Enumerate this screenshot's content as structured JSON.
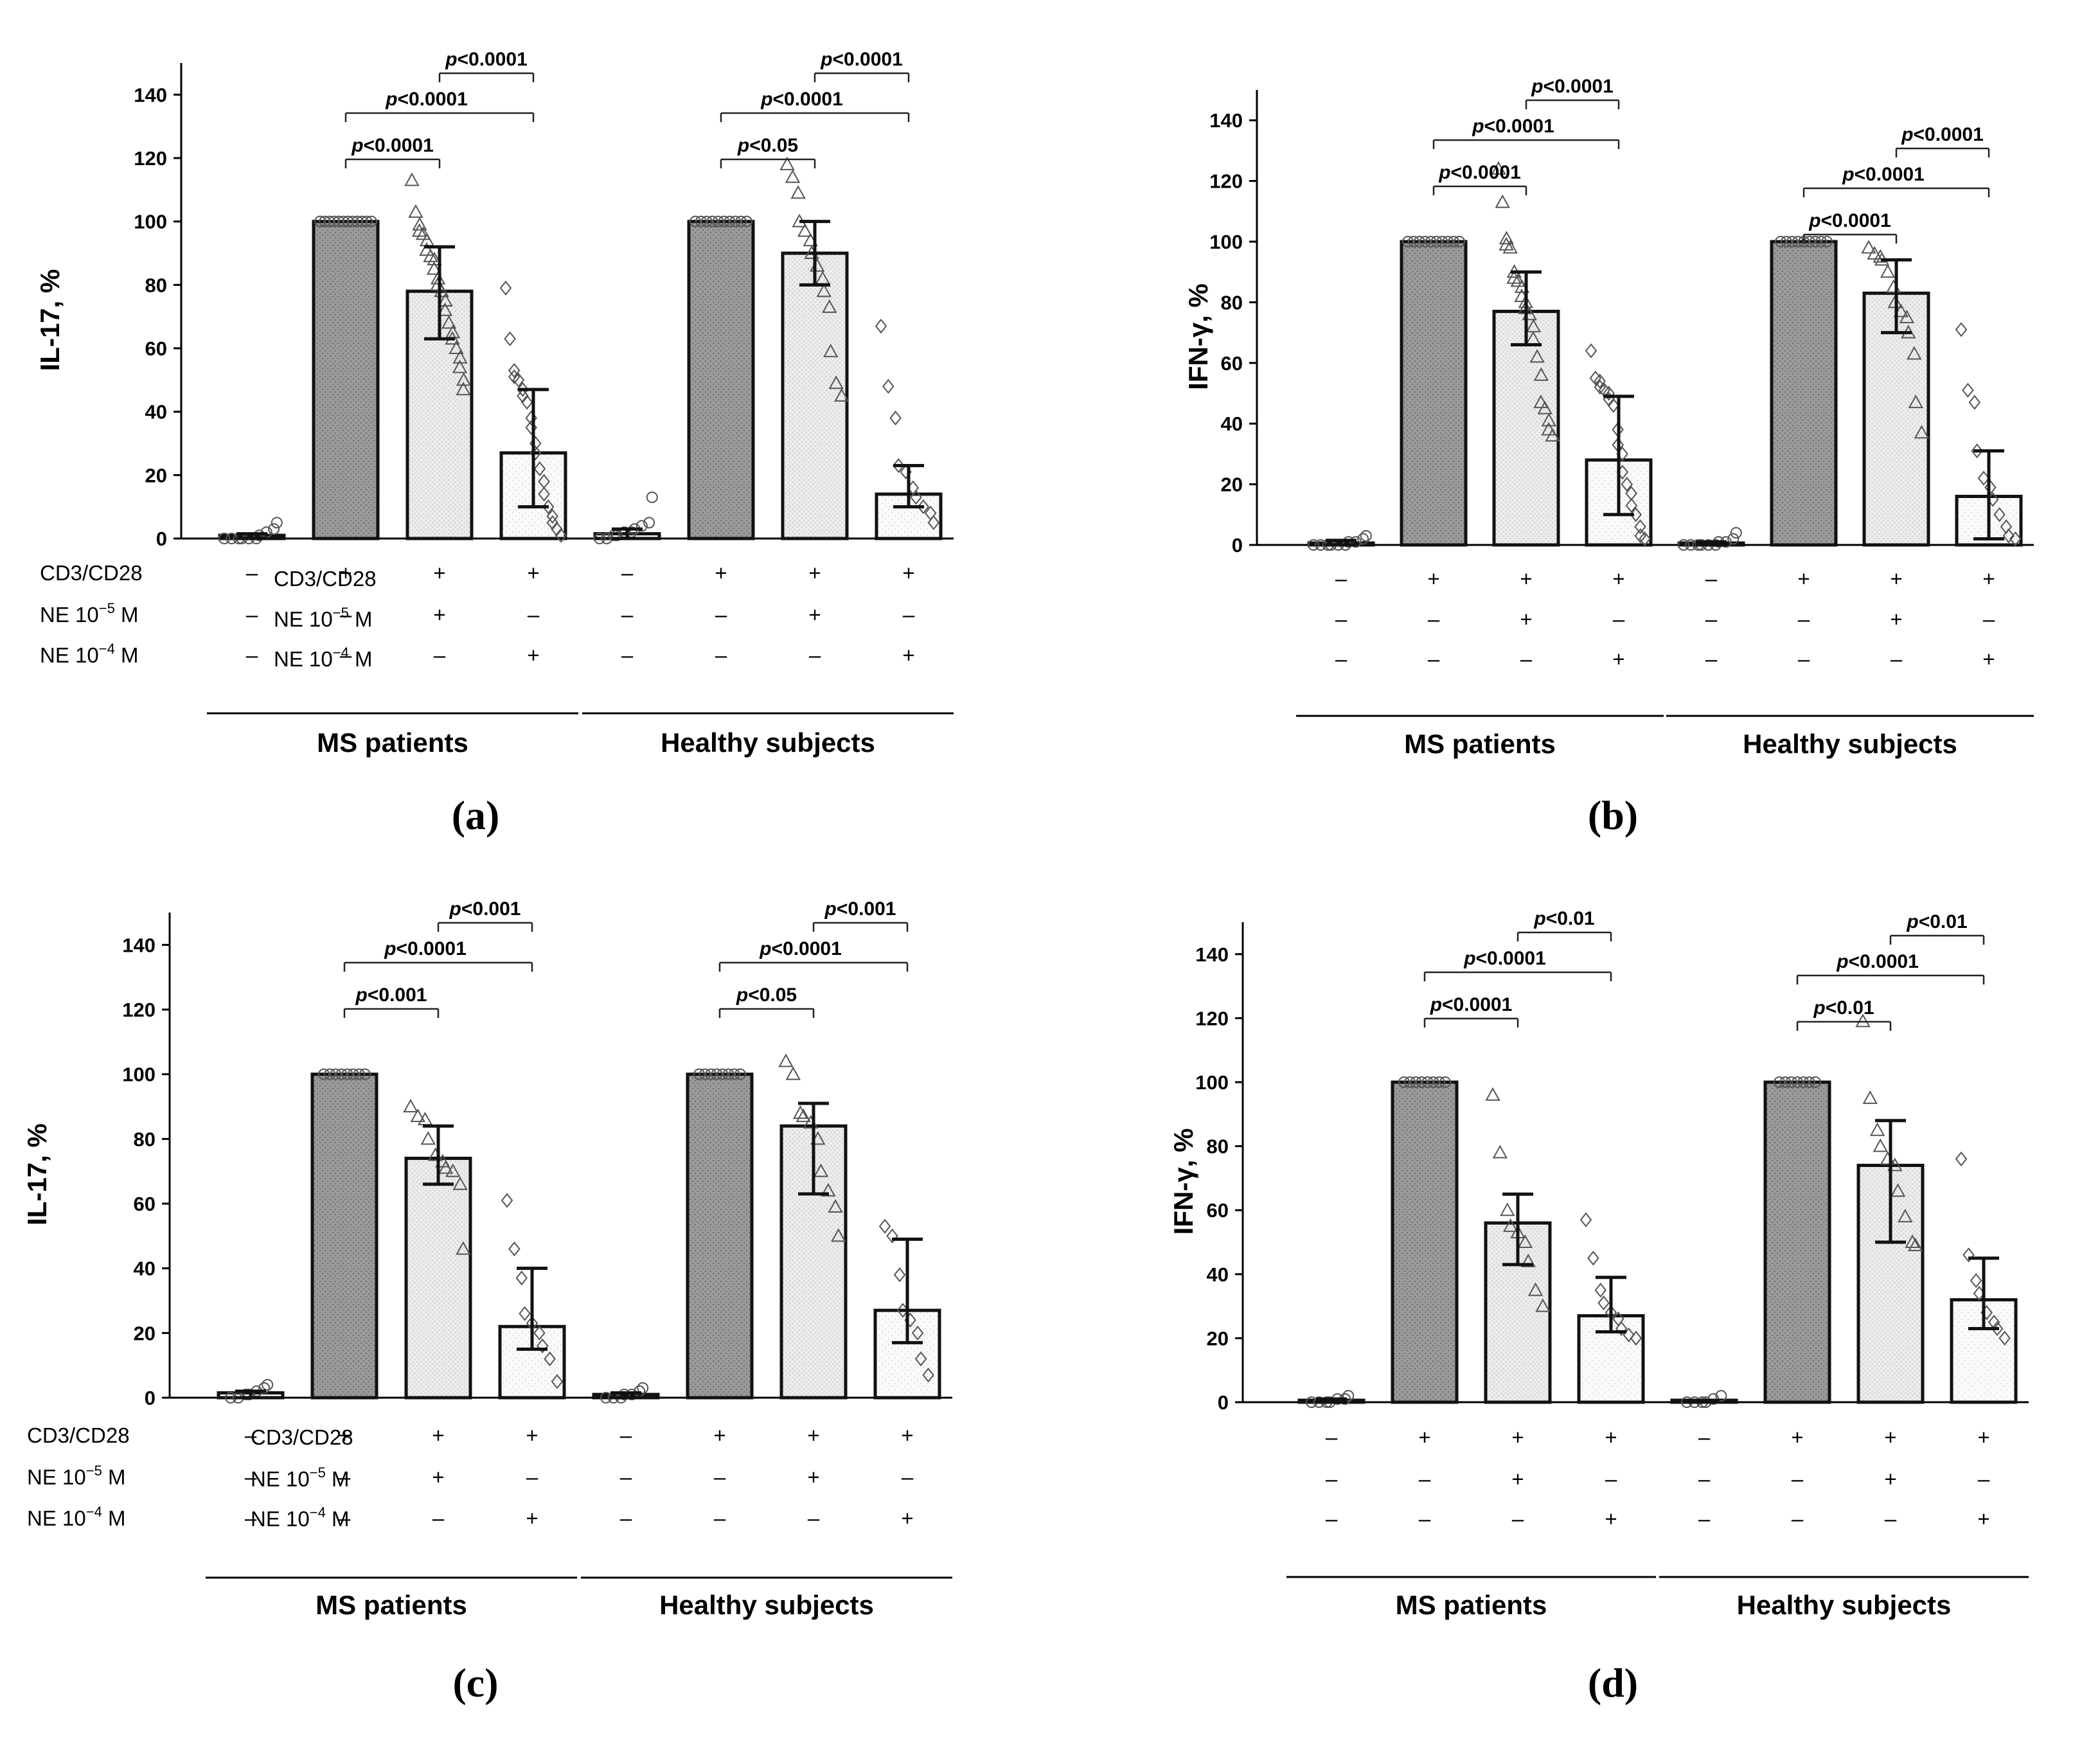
{
  "figure": {
    "colors": {
      "axis": "#000000",
      "bar_dark": "#a0a0a0",
      "bar_light": "#e4e4e4",
      "bar_white": "#f7f7f7",
      "bar_stroke": "#111111",
      "marker": "#555555"
    },
    "condition_rows": {
      "cd3cd28_label": "CD3/CD28",
      "ne5_label": "NE 10",
      "ne5_exp": "−5",
      "ne4_label": "NE 10",
      "ne4_exp": "−4",
      "unit": "M",
      "cd3cd28_signs": [
        "–",
        "+",
        "+",
        "+",
        "–",
        "+",
        "+",
        "+"
      ],
      "ne5_signs": [
        "–",
        "–",
        "+",
        "–",
        "–",
        "–",
        "+",
        "–"
      ],
      "ne4_signs": [
        "–",
        "–",
        "–",
        "+",
        "–",
        "–",
        "–",
        "+"
      ]
    },
    "groups": [
      "MS patients",
      "Healthy subjects"
    ]
  },
  "chart_data": [
    {
      "panel": "(a)",
      "type": "bar",
      "ylabel": "IL-17, %",
      "ylim": [
        0,
        150
      ],
      "yticks": [
        0,
        20,
        40,
        60,
        80,
        100,
        120,
        140
      ],
      "categories": [
        "MS unstimulated",
        "MS CD3/CD28",
        "MS CD3/CD28 + NE 10^-5 M",
        "MS CD3/CD28 + NE 10^-4 M",
        "Healthy unstimulated",
        "Healthy CD3/CD28",
        "Healthy CD3/CD28 + NE 10^-5 M",
        "Healthy CD3/CD28 + NE 10^-4 M"
      ],
      "values": [
        1,
        100,
        78,
        27,
        1.5,
        100,
        90,
        14
      ],
      "error_low": [
        0,
        100,
        63,
        10,
        0,
        100,
        80,
        10
      ],
      "error_high": [
        1.5,
        100,
        92,
        47,
        3,
        100,
        100,
        23
      ],
      "points": [
        [
          0,
          0,
          0,
          0,
          0,
          0,
          1,
          2,
          3,
          5
        ],
        [
          100,
          100,
          100,
          100,
          100,
          100,
          100,
          100,
          100,
          100,
          100,
          100
        ],
        [
          113,
          103,
          99,
          97,
          96,
          94,
          91,
          89,
          88,
          85,
          82,
          80,
          78,
          75,
          72,
          68,
          65,
          63,
          60,
          57,
          54,
          50,
          47
        ],
        [
          79,
          63,
          53,
          51,
          50,
          47,
          45,
          43,
          38,
          35,
          30,
          27,
          22,
          18,
          14,
          10,
          7,
          5,
          3,
          1
        ],
        [
          0,
          0,
          1,
          1,
          2,
          2,
          3,
          4,
          5,
          13
        ],
        [
          100,
          100,
          100,
          100,
          100,
          100,
          100,
          100,
          100,
          100
        ],
        [
          118,
          114,
          109,
          100,
          97,
          94,
          90,
          86,
          82,
          78,
          73,
          59,
          49,
          45
        ],
        [
          67,
          48,
          38,
          23,
          21,
          16,
          13,
          10,
          8,
          5
        ]
      ],
      "comparisons": [
        {
          "from": 1,
          "to": 2,
          "label": "p<0.0001"
        },
        {
          "from": 1,
          "to": 3,
          "label": "p<0.0001"
        },
        {
          "from": 2,
          "to": 3,
          "label": "p<0.0001"
        },
        {
          "from": 5,
          "to": 6,
          "label": "p<0.05"
        },
        {
          "from": 5,
          "to": 7,
          "label": "p<0.0001"
        },
        {
          "from": 6,
          "to": 7,
          "label": "p<0.0001"
        }
      ]
    },
    {
      "panel": "(b)",
      "type": "bar",
      "ylabel": "IFN-γ, %",
      "ylim": [
        0,
        150
      ],
      "yticks": [
        0,
        20,
        40,
        60,
        80,
        100,
        120,
        140
      ],
      "categories": [
        "MS unstimulated",
        "MS CD3/CD28",
        "MS CD3/CD28 + NE 10^-5 M",
        "MS CD3/CD28 + NE 10^-4 M",
        "Healthy unstimulated",
        "Healthy CD3/CD28",
        "Healthy CD3/CD28 + NE 10^-5 M",
        "Healthy CD3/CD28 + NE 10^-4 M"
      ],
      "values": [
        0.5,
        100,
        77,
        28,
        0.5,
        100,
        83,
        16
      ],
      "error_low": [
        0,
        100,
        66,
        10,
        0,
        100,
        70,
        2
      ],
      "error_high": [
        1.5,
        100,
        90,
        49,
        1,
        100,
        94,
        31
      ],
      "points": [
        [
          0,
          0,
          0,
          0,
          0,
          0,
          1,
          1,
          2,
          3
        ],
        [
          100,
          100,
          100,
          100,
          100,
          100,
          100,
          100,
          100,
          100
        ],
        [
          124,
          113,
          101,
          99,
          98,
          90,
          88,
          87,
          85,
          82,
          80,
          78,
          76,
          72,
          68,
          62,
          56,
          47,
          45,
          41,
          38,
          36
        ],
        [
          64,
          55,
          54,
          52,
          51,
          50,
          48,
          46,
          38,
          33,
          30,
          24,
          20,
          17,
          13,
          10,
          6,
          3,
          2
        ],
        [
          0,
          0,
          0,
          0,
          0,
          0,
          1,
          1,
          2,
          4
        ],
        [
          100,
          100,
          100,
          100,
          100,
          100,
          100,
          100,
          100
        ],
        [
          98,
          96,
          95,
          94,
          90,
          85,
          80,
          77,
          75,
          70,
          63,
          47,
          37
        ],
        [
          71,
          51,
          47,
          31,
          22,
          19,
          15,
          10,
          6,
          3,
          2
        ]
      ],
      "comparisons": [
        {
          "from": 1,
          "to": 2,
          "label": "p<0.0001"
        },
        {
          "from": 1,
          "to": 3,
          "label": "p<0.0001"
        },
        {
          "from": 2,
          "to": 3,
          "label": "p<0.0001"
        },
        {
          "from": 5,
          "to": 6,
          "label": "p<0.0001"
        },
        {
          "from": 5,
          "to": 7,
          "label": "p<0.0001"
        },
        {
          "from": 6,
          "to": 7,
          "label": "p<0.0001"
        }
      ]
    },
    {
      "panel": "(c)",
      "type": "bar",
      "ylabel": "IL-17, %",
      "ylim": [
        0,
        150
      ],
      "yticks": [
        0,
        20,
        40,
        60,
        80,
        100,
        120,
        140
      ],
      "categories": [
        "MS unstimulated",
        "MS CD3/CD28",
        "MS CD3/CD28 + NE 10^-5 M",
        "MS CD3/CD28 + NE 10^-4 M",
        "Healthy unstimulated",
        "Healthy CD3/CD28",
        "Healthy CD3/CD28 + NE 10^-5 M",
        "Healthy CD3/CD28 + NE 10^-4 M"
      ],
      "values": [
        1.5,
        100,
        74,
        22,
        1,
        100,
        84,
        27
      ],
      "error_low": [
        0,
        100,
        66,
        15,
        0,
        100,
        63,
        17
      ],
      "error_high": [
        2,
        100,
        84,
        40,
        1.5,
        100,
        91,
        49
      ],
      "points": [
        [
          0,
          0,
          1,
          1,
          2,
          3,
          4
        ],
        [
          100,
          100,
          100,
          100,
          100,
          100,
          100,
          100
        ],
        [
          90,
          87,
          86,
          80,
          75,
          73,
          71,
          70,
          66,
          46
        ],
        [
          61,
          46,
          37,
          26,
          23,
          20,
          16,
          12,
          5
        ],
        [
          0,
          0,
          0,
          1,
          1,
          2,
          3
        ],
        [
          100,
          100,
          100,
          100,
          100,
          100,
          100,
          100
        ],
        [
          104,
          100,
          88,
          87,
          85,
          80,
          70,
          64,
          59,
          50
        ],
        [
          53,
          50,
          38,
          27,
          24,
          20,
          12,
          7
        ]
      ],
      "comparisons": [
        {
          "from": 1,
          "to": 2,
          "label": "p<0.001"
        },
        {
          "from": 1,
          "to": 3,
          "label": "p<0.0001"
        },
        {
          "from": 2,
          "to": 3,
          "label": "p<0.001"
        },
        {
          "from": 5,
          "to": 6,
          "label": "p<0.05"
        },
        {
          "from": 5,
          "to": 7,
          "label": "p<0.0001"
        },
        {
          "from": 6,
          "to": 7,
          "label": "p<0.001"
        }
      ]
    },
    {
      "panel": "(d)",
      "type": "bar",
      "ylabel": "IFN-γ, %",
      "ylim": [
        0,
        150
      ],
      "yticks": [
        0,
        20,
        40,
        60,
        80,
        100,
        120,
        140
      ],
      "categories": [
        "MS unstimulated",
        "MS CD3/CD28",
        "MS CD3/CD28 + NE 10^-5 M",
        "MS CD3/CD28 + NE 10^-4 M",
        "Healthy unstimulated",
        "Healthy CD3/CD28",
        "Healthy CD3/CD28 + NE 10^-5 M",
        "Healthy CD3/CD28 + NE 10^-4 M"
      ],
      "values": [
        0.5,
        100,
        56,
        27,
        0.3,
        100,
        74,
        32
      ],
      "error_low": [
        0,
        100,
        43,
        22,
        0,
        100,
        50,
        23
      ],
      "error_high": [
        1,
        100,
        65,
        39,
        0.5,
        100,
        88,
        45
      ],
      "points": [
        [
          0,
          0,
          0,
          0,
          1,
          1,
          2
        ],
        [
          100,
          100,
          100,
          100,
          100,
          100,
          100,
          100
        ],
        [
          96,
          78,
          60,
          55,
          53,
          50,
          44,
          35,
          30
        ],
        [
          57,
          45,
          35,
          31,
          28,
          26,
          23,
          21,
          20
        ],
        [
          0,
          0,
          0,
          0,
          1,
          2
        ],
        [
          100,
          100,
          100,
          100,
          100,
          100,
          100
        ],
        [
          119,
          95,
          85,
          80,
          76,
          74,
          66,
          58,
          50,
          49
        ],
        [
          76,
          46,
          38,
          34,
          28,
          25,
          23,
          20
        ]
      ],
      "comparisons": [
        {
          "from": 1,
          "to": 2,
          "label": "p<0.0001"
        },
        {
          "from": 1,
          "to": 3,
          "label": "p<0.0001"
        },
        {
          "from": 2,
          "to": 3,
          "label": "p<0.01"
        },
        {
          "from": 5,
          "to": 6,
          "label": "p<0.01"
        },
        {
          "from": 5,
          "to": 7,
          "label": "p<0.0001"
        },
        {
          "from": 6,
          "to": 7,
          "label": "p<0.01"
        }
      ]
    }
  ]
}
